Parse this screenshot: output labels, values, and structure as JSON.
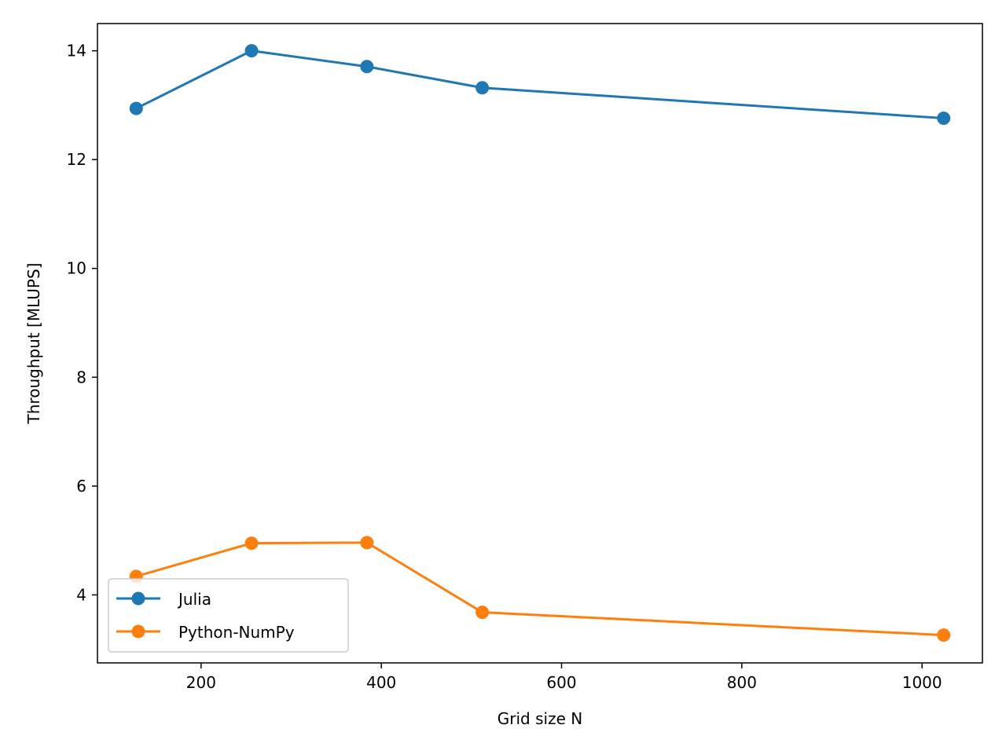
{
  "chart_data": {
    "type": "line",
    "title": "",
    "xlabel": "Grid size N",
    "ylabel": "Throughput [MLUPS]",
    "xlim": [
      85,
      1067
    ],
    "ylim": [
      2.75,
      14.5
    ],
    "xticks": [
      200,
      400,
      600,
      800,
      1000
    ],
    "yticks": [
      4,
      6,
      8,
      10,
      12,
      14
    ],
    "grid": false,
    "legend_position": "lower-left",
    "x": [
      128,
      256,
      384,
      512,
      1024
    ],
    "series": [
      {
        "name": "Julia",
        "color": "#1f77b4",
        "marker": "circle",
        "values": [
          12.94,
          14.0,
          13.71,
          13.32,
          12.76
        ]
      },
      {
        "name": "Python-NumPy",
        "color": "#ff7f0e",
        "marker": "circle",
        "values": [
          4.34,
          4.95,
          4.96,
          3.68,
          3.26
        ]
      }
    ]
  }
}
